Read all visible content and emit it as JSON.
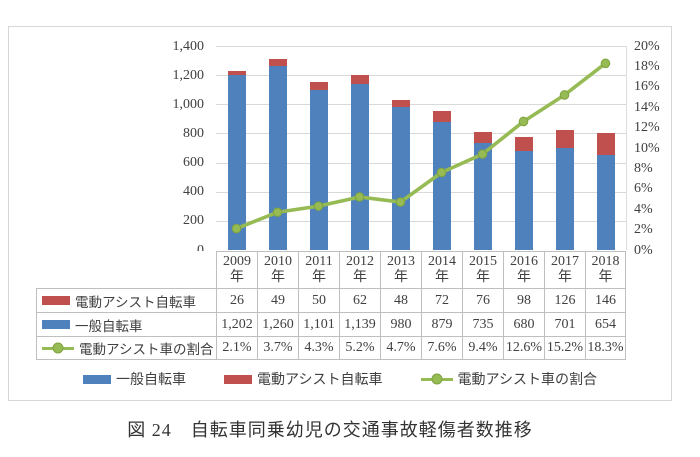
{
  "figure": {
    "caption": "図 24　自転車同乗幼児の交通事故軽傷者数推移"
  },
  "colors": {
    "bar_general": "#4F81BD",
    "bar_assist": "#C0504D",
    "line_ratio": "#96BB54",
    "line_marker_stroke": "#7da23f",
    "gridline": "#d9d9d9",
    "table_border": "#bfbfbf",
    "text": "#404040"
  },
  "chart_data": {
    "type": "bar",
    "subtype": "stacked bars with secondary-axis line",
    "categories": [
      "2009",
      "2010",
      "2011",
      "2012",
      "2013",
      "2014",
      "2015",
      "2016",
      "2017",
      "2018"
    ],
    "category_suffix": "年",
    "series": [
      {
        "name": "一般自転車",
        "type": "bar",
        "axis": "left",
        "values": [
          1202,
          1260,
          1101,
          1139,
          980,
          879,
          735,
          680,
          701,
          654
        ]
      },
      {
        "name": "電動アシスト自転車",
        "type": "bar",
        "axis": "left",
        "values": [
          26,
          49,
          50,
          62,
          48,
          72,
          76,
          98,
          126,
          146
        ]
      },
      {
        "name": "電動アシスト車の割合",
        "type": "line",
        "axis": "right",
        "values": [
          2.1,
          3.7,
          4.3,
          5.2,
          4.7,
          7.6,
          9.4,
          12.6,
          15.2,
          18.3
        ]
      }
    ],
    "left_axis": {
      "min": 0,
      "max": 1400,
      "step": 200,
      "tick_labels": [
        "1,400",
        "1,200",
        "1,000",
        "800",
        "600",
        "400",
        "200",
        "0"
      ]
    },
    "right_axis": {
      "min": 0,
      "max": 20,
      "step": 2,
      "tick_labels": [
        "20%",
        "18%",
        "16%",
        "14%",
        "12%",
        "10%",
        "8%",
        "6%",
        "4%",
        "2%",
        "0%"
      ]
    },
    "grid": true,
    "legend_position": "bottom",
    "title": ""
  },
  "table": {
    "rows": [
      {
        "label": "電動アシスト自転車",
        "swatch": "bar-red",
        "values": [
          "26",
          "49",
          "50",
          "62",
          "48",
          "72",
          "76",
          "98",
          "126",
          "146"
        ]
      },
      {
        "label": "一般自転車",
        "swatch": "bar-blue",
        "values": [
          "1,202",
          "1,260",
          "1,101",
          "1,139",
          "980",
          "879",
          "735",
          "680",
          "701",
          "654"
        ]
      },
      {
        "label": "電動アシスト車の割合",
        "swatch": "line-green",
        "values": [
          "2.1%",
          "3.7%",
          "4.3%",
          "5.2%",
          "4.7%",
          "7.6%",
          "9.4%",
          "12.6%",
          "15.2%",
          "18.3%"
        ]
      }
    ]
  },
  "legend": {
    "items": [
      {
        "label": "一般自転車",
        "swatch": "bar-blue"
      },
      {
        "label": "電動アシスト自転車",
        "swatch": "bar-red"
      },
      {
        "label": "電動アシスト車の割合",
        "swatch": "line-green"
      }
    ]
  }
}
